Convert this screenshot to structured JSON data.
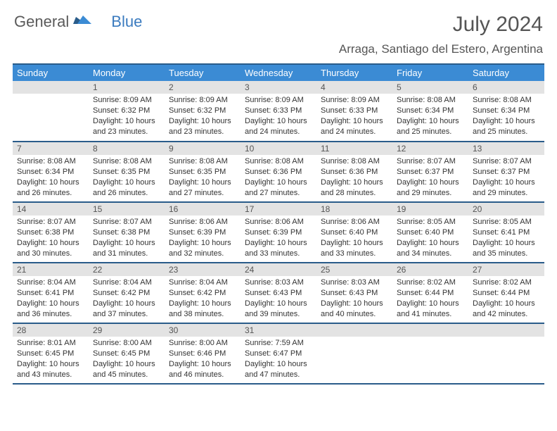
{
  "brand": {
    "part1": "General",
    "part2": "Blue"
  },
  "title": "July 2024",
  "location": "Arraga, Santiago del Estero, Argentina",
  "colors": {
    "header_bg": "#3b8bd4",
    "header_border": "#2a5c8a",
    "daynum_bg": "#e3e3e3",
    "text": "#333333",
    "brand_gray": "#5a5a5a",
    "brand_blue": "#3b7bbf"
  },
  "weekdays": [
    "Sunday",
    "Monday",
    "Tuesday",
    "Wednesday",
    "Thursday",
    "Friday",
    "Saturday"
  ],
  "weeks": [
    [
      {
        "n": "",
        "sunrise": "",
        "sunset": "",
        "daylight": ""
      },
      {
        "n": "1",
        "sunrise": "Sunrise: 8:09 AM",
        "sunset": "Sunset: 6:32 PM",
        "daylight": "Daylight: 10 hours and 23 minutes."
      },
      {
        "n": "2",
        "sunrise": "Sunrise: 8:09 AM",
        "sunset": "Sunset: 6:32 PM",
        "daylight": "Daylight: 10 hours and 23 minutes."
      },
      {
        "n": "3",
        "sunrise": "Sunrise: 8:09 AM",
        "sunset": "Sunset: 6:33 PM",
        "daylight": "Daylight: 10 hours and 24 minutes."
      },
      {
        "n": "4",
        "sunrise": "Sunrise: 8:09 AM",
        "sunset": "Sunset: 6:33 PM",
        "daylight": "Daylight: 10 hours and 24 minutes."
      },
      {
        "n": "5",
        "sunrise": "Sunrise: 8:08 AM",
        "sunset": "Sunset: 6:34 PM",
        "daylight": "Daylight: 10 hours and 25 minutes."
      },
      {
        "n": "6",
        "sunrise": "Sunrise: 8:08 AM",
        "sunset": "Sunset: 6:34 PM",
        "daylight": "Daylight: 10 hours and 25 minutes."
      }
    ],
    [
      {
        "n": "7",
        "sunrise": "Sunrise: 8:08 AM",
        "sunset": "Sunset: 6:34 PM",
        "daylight": "Daylight: 10 hours and 26 minutes."
      },
      {
        "n": "8",
        "sunrise": "Sunrise: 8:08 AM",
        "sunset": "Sunset: 6:35 PM",
        "daylight": "Daylight: 10 hours and 26 minutes."
      },
      {
        "n": "9",
        "sunrise": "Sunrise: 8:08 AM",
        "sunset": "Sunset: 6:35 PM",
        "daylight": "Daylight: 10 hours and 27 minutes."
      },
      {
        "n": "10",
        "sunrise": "Sunrise: 8:08 AM",
        "sunset": "Sunset: 6:36 PM",
        "daylight": "Daylight: 10 hours and 27 minutes."
      },
      {
        "n": "11",
        "sunrise": "Sunrise: 8:08 AM",
        "sunset": "Sunset: 6:36 PM",
        "daylight": "Daylight: 10 hours and 28 minutes."
      },
      {
        "n": "12",
        "sunrise": "Sunrise: 8:07 AM",
        "sunset": "Sunset: 6:37 PM",
        "daylight": "Daylight: 10 hours and 29 minutes."
      },
      {
        "n": "13",
        "sunrise": "Sunrise: 8:07 AM",
        "sunset": "Sunset: 6:37 PM",
        "daylight": "Daylight: 10 hours and 29 minutes."
      }
    ],
    [
      {
        "n": "14",
        "sunrise": "Sunrise: 8:07 AM",
        "sunset": "Sunset: 6:38 PM",
        "daylight": "Daylight: 10 hours and 30 minutes."
      },
      {
        "n": "15",
        "sunrise": "Sunrise: 8:07 AM",
        "sunset": "Sunset: 6:38 PM",
        "daylight": "Daylight: 10 hours and 31 minutes."
      },
      {
        "n": "16",
        "sunrise": "Sunrise: 8:06 AM",
        "sunset": "Sunset: 6:39 PM",
        "daylight": "Daylight: 10 hours and 32 minutes."
      },
      {
        "n": "17",
        "sunrise": "Sunrise: 8:06 AM",
        "sunset": "Sunset: 6:39 PM",
        "daylight": "Daylight: 10 hours and 33 minutes."
      },
      {
        "n": "18",
        "sunrise": "Sunrise: 8:06 AM",
        "sunset": "Sunset: 6:40 PM",
        "daylight": "Daylight: 10 hours and 33 minutes."
      },
      {
        "n": "19",
        "sunrise": "Sunrise: 8:05 AM",
        "sunset": "Sunset: 6:40 PM",
        "daylight": "Daylight: 10 hours and 34 minutes."
      },
      {
        "n": "20",
        "sunrise": "Sunrise: 8:05 AM",
        "sunset": "Sunset: 6:41 PM",
        "daylight": "Daylight: 10 hours and 35 minutes."
      }
    ],
    [
      {
        "n": "21",
        "sunrise": "Sunrise: 8:04 AM",
        "sunset": "Sunset: 6:41 PM",
        "daylight": "Daylight: 10 hours and 36 minutes."
      },
      {
        "n": "22",
        "sunrise": "Sunrise: 8:04 AM",
        "sunset": "Sunset: 6:42 PM",
        "daylight": "Daylight: 10 hours and 37 minutes."
      },
      {
        "n": "23",
        "sunrise": "Sunrise: 8:04 AM",
        "sunset": "Sunset: 6:42 PM",
        "daylight": "Daylight: 10 hours and 38 minutes."
      },
      {
        "n": "24",
        "sunrise": "Sunrise: 8:03 AM",
        "sunset": "Sunset: 6:43 PM",
        "daylight": "Daylight: 10 hours and 39 minutes."
      },
      {
        "n": "25",
        "sunrise": "Sunrise: 8:03 AM",
        "sunset": "Sunset: 6:43 PM",
        "daylight": "Daylight: 10 hours and 40 minutes."
      },
      {
        "n": "26",
        "sunrise": "Sunrise: 8:02 AM",
        "sunset": "Sunset: 6:44 PM",
        "daylight": "Daylight: 10 hours and 41 minutes."
      },
      {
        "n": "27",
        "sunrise": "Sunrise: 8:02 AM",
        "sunset": "Sunset: 6:44 PM",
        "daylight": "Daylight: 10 hours and 42 minutes."
      }
    ],
    [
      {
        "n": "28",
        "sunrise": "Sunrise: 8:01 AM",
        "sunset": "Sunset: 6:45 PM",
        "daylight": "Daylight: 10 hours and 43 minutes."
      },
      {
        "n": "29",
        "sunrise": "Sunrise: 8:00 AM",
        "sunset": "Sunset: 6:45 PM",
        "daylight": "Daylight: 10 hours and 45 minutes."
      },
      {
        "n": "30",
        "sunrise": "Sunrise: 8:00 AM",
        "sunset": "Sunset: 6:46 PM",
        "daylight": "Daylight: 10 hours and 46 minutes."
      },
      {
        "n": "31",
        "sunrise": "Sunrise: 7:59 AM",
        "sunset": "Sunset: 6:47 PM",
        "daylight": "Daylight: 10 hours and 47 minutes."
      },
      {
        "n": "",
        "sunrise": "",
        "sunset": "",
        "daylight": ""
      },
      {
        "n": "",
        "sunrise": "",
        "sunset": "",
        "daylight": ""
      },
      {
        "n": "",
        "sunrise": "",
        "sunset": "",
        "daylight": ""
      }
    ]
  ]
}
